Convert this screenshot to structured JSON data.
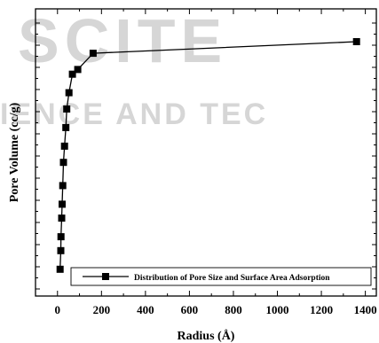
{
  "chart_data": {
    "type": "line",
    "xlabel": "Radius (Å)",
    "ylabel": "Pore Volume (cc/g)",
    "xlim": [
      -100,
      1450
    ],
    "ylim": [
      0,
      1.0
    ],
    "x_ticks": [
      0,
      200,
      400,
      600,
      800,
      1000,
      1200,
      1400
    ],
    "x_tick_labels": [
      "0",
      "200",
      "400",
      "600",
      "800",
      "1000",
      "1200",
      "1400"
    ],
    "y_tick_labels_shown": false,
    "grid": false,
    "legend": {
      "position": "bottom-center",
      "marker": "filled-square",
      "line": true
    },
    "series": [
      {
        "name": "Distribution of Pore Size and Surface Area Adsorption",
        "color": "#000000",
        "marker": "square",
        "x": [
          12,
          15,
          16,
          19,
          21,
          24,
          27,
          32,
          38,
          42,
          52,
          68,
          92,
          162,
          1360
        ],
        "y": [
          0.02,
          0.1,
          0.16,
          0.24,
          0.3,
          0.38,
          0.48,
          0.55,
          0.63,
          0.71,
          0.78,
          0.86,
          0.88,
          0.95,
          1.0
        ]
      }
    ],
    "watermark": "SCITE… SCIENCE AND TECHNOLOGY"
  }
}
